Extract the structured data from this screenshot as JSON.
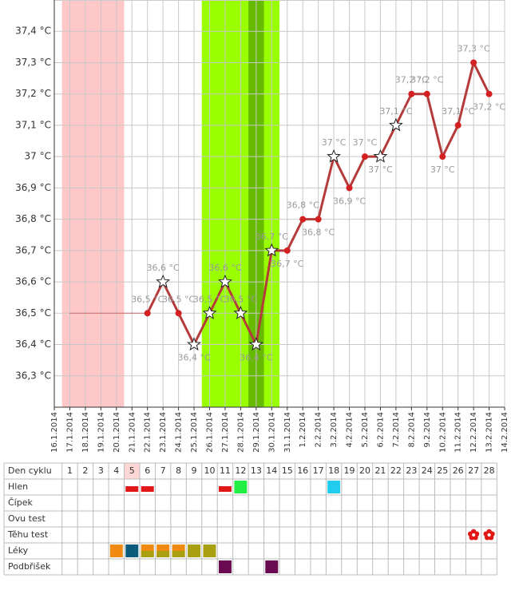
{
  "chart_data": {
    "type": "line",
    "categories": [
      "16.1.2014",
      "17.1.2014",
      "18.1.2014",
      "19.1.2014",
      "20.1.2014",
      "21.1.2014",
      "22.1.2014",
      "23.1.2014",
      "24.1.2014",
      "25.1.2014",
      "26.1.2014",
      "27.1.2014",
      "28.1.2014",
      "29.1.2014",
      "30.1.2014",
      "31.1.2014",
      "1.2.2014",
      "2.2.2014",
      "3.2.2014",
      "4.2.2014",
      "5.2.2014",
      "6.2.2014",
      "7.2.2014",
      "8.2.2014",
      "9.2.2014",
      "10.2.2014",
      "11.2.2014",
      "12.2.2014",
      "13.2.2014",
      "14.2.2014"
    ],
    "series": [
      {
        "color": "#b53a3a",
        "point_color": "#d42020",
        "values": [
          null,
          null,
          null,
          null,
          null,
          null,
          36.5,
          36.6,
          36.5,
          36.4,
          36.5,
          36.6,
          36.5,
          36.4,
          36.7,
          36.7,
          36.8,
          36.8,
          37.0,
          36.9,
          37.0,
          37.0,
          37.1,
          37.2,
          37.2,
          37.0,
          37.1,
          37.3,
          37.2,
          null
        ],
        "value_labels": [
          null,
          null,
          null,
          null,
          null,
          null,
          "36,5 °C",
          "36,6 °C",
          "36,5 °C",
          "36,4 °C",
          "36,5 °C",
          "36,6 °C",
          "36,5 °C",
          "36,4 °C",
          "36,7 °C",
          "36,7 °C",
          "36,8 °C",
          "36,8 °C",
          "37 °C",
          "36,9 °C",
          "37 °C",
          "37 °C",
          "37,1 °C",
          "37,2 °C",
          "37,2 °C",
          "37 °C",
          "37,1 °C",
          "37,3 °C",
          "37,2 °C",
          null
        ],
        "markers": [
          null,
          null,
          null,
          null,
          null,
          null,
          "circle",
          "star",
          "circle",
          "star",
          "star",
          "star",
          "star",
          "star",
          "star",
          "circle",
          "circle",
          "circle",
          "star",
          "circle",
          "circle",
          "star",
          "star",
          "circle",
          "circle",
          "circle",
          "circle",
          "circle",
          "circle",
          null
        ]
      }
    ],
    "reference_line": {
      "value": 36.5,
      "start": 1,
      "end": 6,
      "color": "#cc0000"
    },
    "bands": [
      {
        "start": 1,
        "end": 4,
        "color": "#ffc8c8"
      },
      {
        "start": 10,
        "end": 14,
        "color": "#99ff00"
      },
      {
        "start": 13,
        "end": 13,
        "color": "#66bb00"
      }
    ],
    "ylim": [
      36.2,
      37.5
    ],
    "yticks": [
      {
        "value": 36.3,
        "label": "36,3 °C"
      },
      {
        "value": 36.4,
        "label": "36,4 °C"
      },
      {
        "value": 36.5,
        "label": "36,5 °C"
      },
      {
        "value": 36.6,
        "label": "36,6 °C"
      },
      {
        "value": 36.7,
        "label": "36,7 °C"
      },
      {
        "value": 36.8,
        "label": "36,8 °C"
      },
      {
        "value": 36.9,
        "label": "36,9 °C"
      },
      {
        "value": 37,
        "label": "37 °C"
      },
      {
        "value": 37.1,
        "label": "37,1 °C"
      },
      {
        "value": 37.2,
        "label": "37,2 °C"
      },
      {
        "value": 37.3,
        "label": "37,3 °C"
      },
      {
        "value": 37.4,
        "label": "37,4 °C"
      }
    ],
    "grid": true
  },
  "cycle_table": {
    "header": "Den cyklu",
    "days": [
      1,
      2,
      3,
      4,
      5,
      6,
      7,
      8,
      9,
      10,
      11,
      12,
      13,
      14,
      15,
      16,
      17,
      18,
      19,
      20,
      21,
      22,
      23,
      24,
      25,
      26,
      27,
      28
    ],
    "highlight_day": 5,
    "highlight_color": "#ffd6d6",
    "rows": [
      {
        "label": "Hlen",
        "cells": [
          {
            "day": 5,
            "shape": "bar",
            "color": "#e01818"
          },
          {
            "day": 6,
            "shape": "bar",
            "color": "#e01818"
          },
          {
            "day": 11,
            "shape": "bar",
            "color": "#e01818"
          },
          {
            "day": 12,
            "shape": "square",
            "color": "#22ee44"
          },
          {
            "day": 18,
            "shape": "square",
            "color": "#22ccee"
          }
        ]
      },
      {
        "label": "Čípek",
        "cells": []
      },
      {
        "label": "Ovu test",
        "cells": []
      },
      {
        "label": "Těhu test",
        "cells": [
          {
            "day": 27,
            "shape": "flower",
            "color": "#e01818"
          },
          {
            "day": 28,
            "shape": "flower",
            "color": "#e01818"
          }
        ]
      },
      {
        "label": "Léky",
        "cells": [
          {
            "day": 4,
            "shape": "box",
            "color": "#f08a10"
          },
          {
            "day": 5,
            "shape": "box",
            "color": "#0b5c7a"
          },
          {
            "day": 6,
            "shape": "box",
            "color": "#f08a10",
            "color2": "#a8a010"
          },
          {
            "day": 7,
            "shape": "box",
            "color": "#f08a10",
            "color2": "#a8a010"
          },
          {
            "day": 8,
            "shape": "box",
            "color": "#f08a10",
            "color2": "#a8a010"
          },
          {
            "day": 9,
            "shape": "box",
            "color": "#a8a010"
          },
          {
            "day": 10,
            "shape": "box",
            "color": "#a8a010"
          }
        ]
      },
      {
        "label": "Podbřišek",
        "cells": [
          {
            "day": 11,
            "shape": "box",
            "color": "#6a0a50"
          },
          {
            "day": 14,
            "shape": "box",
            "color": "#6a0a50"
          }
        ]
      }
    ]
  }
}
